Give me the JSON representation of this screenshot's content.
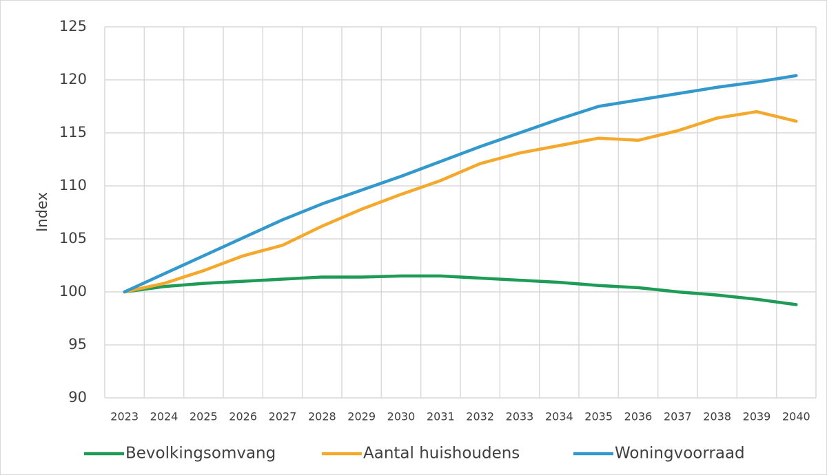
{
  "chart_data": {
    "type": "line",
    "y_label": "Index",
    "categories": [
      "2023",
      "2024",
      "2025",
      "2026",
      "2027",
      "2028",
      "2029",
      "2030",
      "2031",
      "2032",
      "2033",
      "2034",
      "2035",
      "2036",
      "2037",
      "2038",
      "2039",
      "2040"
    ],
    "series": [
      {
        "name": "Bevolkingsomvang",
        "color": "#1e9b57",
        "values": [
          100,
          100.5,
          100.8,
          101.0,
          101.2,
          101.4,
          101.4,
          101.5,
          101.5,
          101.3,
          101.1,
          100.9,
          100.6,
          100.4,
          100.0,
          99.7,
          99.3,
          98.8
        ]
      },
      {
        "name": "Aantal huishoudens",
        "color": "#f4a82c",
        "values": [
          100,
          100.8,
          102.0,
          103.4,
          104.4,
          106.2,
          107.8,
          109.2,
          110.5,
          112.1,
          113.1,
          113.8,
          114.5,
          114.3,
          115.2,
          116.4,
          117.0,
          116.1
        ]
      },
      {
        "name": "Woningvoorraad",
        "color": "#3399cc",
        "values": [
          100,
          101.7,
          103.4,
          105.1,
          106.8,
          108.3,
          109.6,
          110.9,
          112.3,
          113.7,
          115.0,
          116.3,
          117.5,
          118.1,
          118.7,
          119.3,
          119.8,
          120.4
        ]
      }
    ],
    "ylim": [
      90,
      125
    ],
    "yticks": [
      90,
      95,
      100,
      105,
      110,
      115,
      120,
      125
    ],
    "grid": true,
    "legend": "bottom"
  }
}
